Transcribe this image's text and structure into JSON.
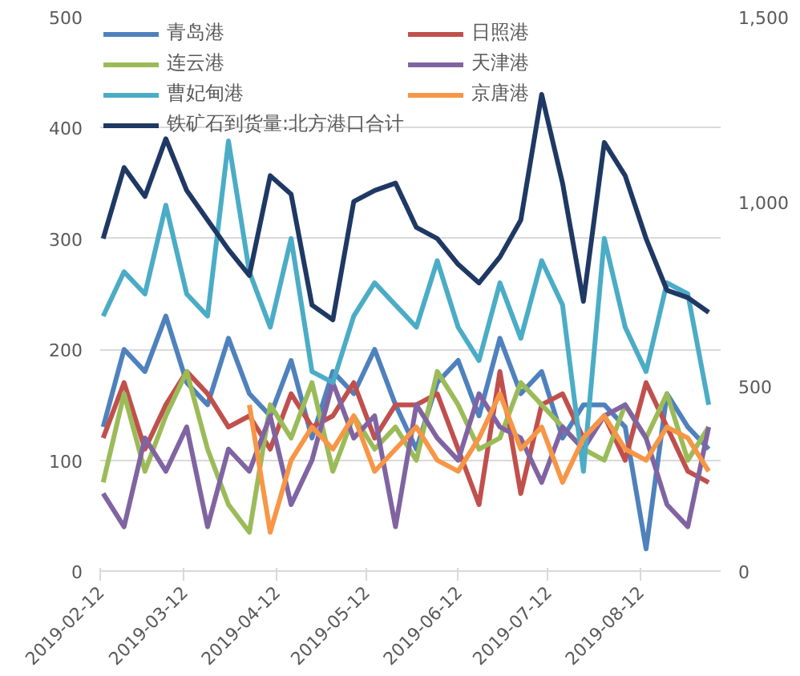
{
  "chart_data": {
    "type": "line",
    "x": [
      "2019-02-13",
      "2019-02-20",
      "2019-02-27",
      "2019-03-06",
      "2019-03-13",
      "2019-03-20",
      "2019-03-27",
      "2019-04-03",
      "2019-04-10",
      "2019-04-17",
      "2019-04-24",
      "2019-05-01",
      "2019-05-08",
      "2019-05-15",
      "2019-05-22",
      "2019-05-29",
      "2019-06-05",
      "2019-06-12",
      "2019-06-19",
      "2019-06-26",
      "2019-07-03",
      "2019-07-10",
      "2019-07-17",
      "2019-07-24",
      "2019-07-31",
      "2019-08-07",
      "2019-08-14",
      "2019-08-21",
      "2019-08-28",
      "2019-09-04"
    ],
    "series": [
      {
        "name": "青岛港",
        "color": "#4f81bd",
        "values": [
          130,
          200,
          180,
          230,
          170,
          150,
          210,
          160,
          140,
          190,
          120,
          180,
          160,
          200,
          150,
          110,
          170,
          190,
          140,
          210,
          160,
          180,
          120,
          150,
          150,
          130,
          20,
          160,
          130,
          110
        ]
      },
      {
        "name": "日照港",
        "color": "#c0504d",
        "values": [
          120,
          170,
          110,
          150,
          180,
          160,
          130,
          140,
          110,
          160,
          130,
          140,
          170,
          120,
          150,
          150,
          160,
          110,
          60,
          180,
          70,
          150,
          160,
          120,
          140,
          100,
          170,
          130,
          90,
          80
        ]
      },
      {
        "name": "连云港",
        "color": "#9bbb59",
        "values": [
          80,
          160,
          90,
          140,
          180,
          110,
          60,
          35,
          150,
          120,
          170,
          90,
          140,
          110,
          130,
          100,
          180,
          150,
          110,
          120,
          170,
          150,
          130,
          110,
          100,
          150,
          120,
          160,
          100,
          130
        ]
      },
      {
        "name": "天津港",
        "color": "#8064a2",
        "values": [
          70,
          40,
          120,
          90,
          130,
          40,
          110,
          90,
          140,
          60,
          100,
          170,
          120,
          140,
          40,
          150,
          120,
          100,
          160,
          130,
          120,
          80,
          130,
          110,
          140,
          150,
          120,
          60,
          40,
          130
        ]
      },
      {
        "name": "曹妃甸港",
        "color": "#4bacc6",
        "values": [
          230,
          270,
          250,
          330,
          250,
          230,
          388,
          270,
          220,
          300,
          180,
          170,
          230,
          260,
          240,
          220,
          280,
          220,
          190,
          260,
          210,
          280,
          240,
          90,
          300,
          220,
          180,
          260,
          250,
          150
        ]
      },
      {
        "name": "京唐港",
        "color": "#f79646",
        "values": [
          null,
          null,
          null,
          null,
          null,
          null,
          null,
          150,
          35,
          100,
          130,
          110,
          140,
          90,
          110,
          130,
          100,
          90,
          120,
          160,
          110,
          130,
          80,
          120,
          140,
          110,
          100,
          130,
          120,
          90
        ]
      },
      {
        "name": "铁矿石到货量:北方港口合计",
        "color": "#1f3864",
        "axis": "y2",
        "values": [
          900,
          1092,
          1014,
          1170,
          1030,
          950,
          870,
          800,
          1070,
          1020,
          720,
          680,
          1000,
          1030,
          1050,
          930,
          900,
          830,
          780,
          850,
          950,
          1290,
          1050,
          730,
          1160,
          1070,
          900,
          760,
          740,
          700
        ]
      }
    ],
    "xlim": [
      "2019-02-12",
      "2019-09-08"
    ],
    "xticks": [
      {
        "value": "2019-02-12",
        "label": "2019-02-12"
      },
      {
        "value": "2019-03-12",
        "label": "2019-03-12"
      },
      {
        "value": "2019-04-12",
        "label": "2019-04-12"
      },
      {
        "value": "2019-05-12",
        "label": "2019-05-12"
      },
      {
        "value": "2019-06-12",
        "label": "2019-06-12"
      },
      {
        "value": "2019-07-12",
        "label": "2019-07-12"
      },
      {
        "value": "2019-08-12",
        "label": "2019-08-12"
      }
    ],
    "ylim": [
      0,
      500
    ],
    "yticks": [
      0,
      100,
      200,
      300,
      400,
      500
    ],
    "y2lim": [
      0,
      1500
    ],
    "y2ticks": [
      0,
      {
        "value": 500,
        "label": "500"
      },
      {
        "value": 1000,
        "label": "1,000"
      },
      {
        "value": 1500,
        "label": "1,500"
      }
    ],
    "grid": "y",
    "legend": "top",
    "marker": "none",
    "line_style": "solid"
  }
}
